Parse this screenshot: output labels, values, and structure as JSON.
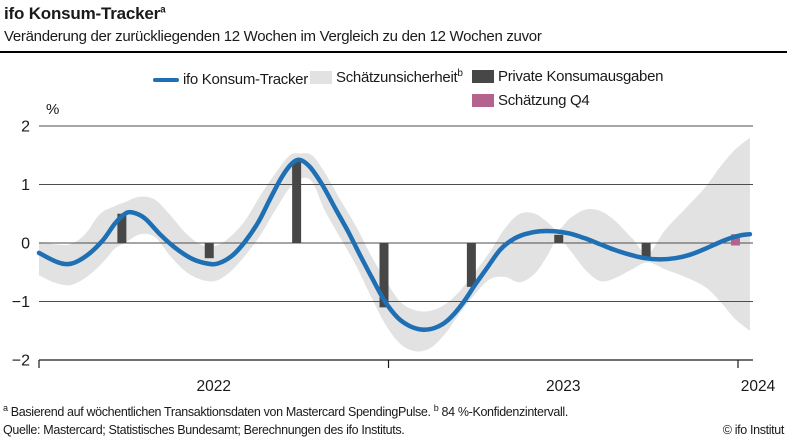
{
  "header": {
    "title": "ifo Konsum-Tracker",
    "title_superscript": "a",
    "subtitle": "Veränderung der zurückliegenden 12 Wochen im Vergleich zu den 12 Wochen zuvor"
  },
  "legend": {
    "items": [
      {
        "label": "ifo Konsum-Tracker",
        "type": "line",
        "color": "#1e6fb4"
      },
      {
        "label": "Schätzunsicherheit",
        "superscript": "b",
        "type": "band",
        "color": "#e2e2e2"
      },
      {
        "label": "Private Konsumausgaben",
        "type": "bar",
        "color": "#474747"
      },
      {
        "label": "Schätzung Q4",
        "type": "bar",
        "color": "#b4628e"
      }
    ]
  },
  "footnotes": {
    "note_a_sup": "a",
    "note_a": "Basierend auf wöchentlichen Transaktionsdaten von Mastercard SpendingPulse.",
    "note_b_sup": "b",
    "note_b": "84 %-Konfidenzintervall.",
    "source": "Quelle: Mastercard; Statistisches Bundesamt; Berechnungen des ifo Instituts.",
    "copyright": "© ifo Institut"
  },
  "chart_data": {
    "type": "line",
    "title": "ifo Konsum-Tracker",
    "unit_label": "%",
    "ylim": [
      -2,
      2
    ],
    "yticks": [
      2,
      1,
      0,
      -1,
      -2
    ],
    "ytick_labels": [
      "2",
      "1",
      "0",
      "−1",
      "−2"
    ],
    "xlim": [
      2022.0,
      2024.04
    ],
    "x_year_ticks": [
      2022,
      2023,
      2024
    ],
    "x_tick_labels": [
      "2022",
      "2023",
      "2024"
    ],
    "grid": "horizontal",
    "legend_position": "top",
    "line_series": {
      "name": "ifo Konsum-Tracker",
      "color": "#1e6fb4",
      "points": [
        [
          2022.0,
          -0.17
        ],
        [
          2022.054,
          -0.33
        ],
        [
          2022.094,
          -0.35
        ],
        [
          2022.14,
          -0.2
        ],
        [
          2022.183,
          0.05
        ],
        [
          2022.217,
          0.33
        ],
        [
          2022.246,
          0.5
        ],
        [
          2022.269,
          0.52
        ],
        [
          2022.303,
          0.42
        ],
        [
          2022.346,
          0.15
        ],
        [
          2022.389,
          -0.08
        ],
        [
          2022.438,
          -0.27
        ],
        [
          2022.481,
          -0.35
        ],
        [
          2022.512,
          -0.35
        ],
        [
          2022.552,
          -0.22
        ],
        [
          2022.589,
          0.02
        ],
        [
          2022.627,
          0.35
        ],
        [
          2022.661,
          0.75
        ],
        [
          2022.695,
          1.13
        ],
        [
          2022.724,
          1.36
        ],
        [
          2022.747,
          1.42
        ],
        [
          2022.775,
          1.3
        ],
        [
          2022.81,
          1.0
        ],
        [
          2022.847,
          0.6
        ],
        [
          2022.884,
          0.2
        ],
        [
          2022.918,
          -0.2
        ],
        [
          2022.953,
          -0.6
        ],
        [
          2022.99,
          -1.0
        ],
        [
          2023.027,
          -1.28
        ],
        [
          2023.061,
          -1.42
        ],
        [
          2023.096,
          -1.48
        ],
        [
          2023.133,
          -1.45
        ],
        [
          2023.17,
          -1.32
        ],
        [
          2023.21,
          -1.05
        ],
        [
          2023.247,
          -0.72
        ],
        [
          2023.285,
          -0.4
        ],
        [
          2023.319,
          -0.12
        ],
        [
          2023.353,
          0.05
        ],
        [
          2023.39,
          0.15
        ],
        [
          2023.433,
          0.2
        ],
        [
          2023.476,
          0.2
        ],
        [
          2023.519,
          0.16
        ],
        [
          2023.562,
          0.08
        ],
        [
          2023.605,
          -0.02
        ],
        [
          2023.648,
          -0.12
        ],
        [
          2023.691,
          -0.2
        ],
        [
          2023.734,
          -0.26
        ],
        [
          2023.777,
          -0.28
        ],
        [
          2023.82,
          -0.26
        ],
        [
          2023.863,
          -0.2
        ],
        [
          2023.906,
          -0.1
        ],
        [
          2023.943,
          0.0
        ],
        [
          2023.977,
          0.08
        ],
        [
          2024.006,
          0.13
        ],
        [
          2024.034,
          0.15
        ]
      ]
    },
    "band_series": {
      "name": "Schätzunsicherheit (84 %-Konfidenzintervall)",
      "color": "#e2e2e2",
      "points": [
        [
          2022.0,
          0.02,
          -0.55
        ],
        [
          2022.046,
          -0.02,
          -0.68
        ],
        [
          2022.089,
          -0.02,
          -0.72
        ],
        [
          2022.132,
          0.15,
          -0.6
        ],
        [
          2022.175,
          0.5,
          -0.38
        ],
        [
          2022.217,
          0.63,
          -0.1
        ],
        [
          2022.246,
          0.7,
          0.0
        ],
        [
          2022.289,
          0.79,
          0.15
        ],
        [
          2022.332,
          0.74,
          0.1
        ],
        [
          2022.375,
          0.48,
          -0.22
        ],
        [
          2022.418,
          0.18,
          -0.48
        ],
        [
          2022.461,
          -0.02,
          -0.62
        ],
        [
          2022.504,
          -0.05,
          -0.65
        ],
        [
          2022.546,
          0.1,
          -0.5
        ],
        [
          2022.589,
          0.38,
          -0.22
        ],
        [
          2022.632,
          0.8,
          0.12
        ],
        [
          2022.675,
          1.18,
          0.55
        ],
        [
          2022.718,
          1.5,
          0.95
        ],
        [
          2022.747,
          1.53,
          1.1
        ],
        [
          2022.781,
          1.5,
          1.05
        ],
        [
          2022.818,
          1.2,
          0.55
        ],
        [
          2022.861,
          0.75,
          0.1
        ],
        [
          2022.904,
          0.32,
          -0.35
        ],
        [
          2022.947,
          -0.18,
          -0.88
        ],
        [
          2022.99,
          -0.62,
          -1.38
        ],
        [
          2023.033,
          -1.0,
          -1.72
        ],
        [
          2023.076,
          -1.15,
          -1.85
        ],
        [
          2023.119,
          -1.16,
          -1.8
        ],
        [
          2023.162,
          -1.05,
          -1.55
        ],
        [
          2023.204,
          -0.82,
          -1.2
        ],
        [
          2023.247,
          -0.5,
          -0.88
        ],
        [
          2023.29,
          -0.15,
          -0.62
        ],
        [
          2023.333,
          0.25,
          -0.58
        ],
        [
          2023.376,
          0.5,
          -0.67
        ],
        [
          2023.419,
          0.5,
          -0.52
        ],
        [
          2023.456,
          0.35,
          -0.2
        ],
        [
          2023.485,
          0.22,
          0.08
        ],
        [
          2023.519,
          0.42,
          -0.12
        ],
        [
          2023.562,
          0.57,
          -0.45
        ],
        [
          2023.605,
          0.55,
          -0.65
        ],
        [
          2023.648,
          0.38,
          -0.6
        ],
        [
          2023.697,
          0.08,
          -0.45
        ],
        [
          2023.742,
          -0.18,
          -0.33
        ],
        [
          2023.791,
          0.22,
          -0.45
        ],
        [
          2023.848,
          0.58,
          -0.58
        ],
        [
          2023.906,
          0.95,
          -0.75
        ],
        [
          2023.949,
          1.3,
          -1.0
        ],
        [
          2023.992,
          1.6,
          -1.3
        ],
        [
          2024.034,
          1.8,
          -1.5
        ]
      ]
    },
    "bar_series": {
      "name": "Private Konsumausgaben",
      "color": "#474747",
      "points": [
        [
          2022.25,
          0.5
        ],
        [
          2022.5,
          -0.26
        ],
        [
          2022.75,
          1.4
        ],
        [
          2023.0,
          -1.1
        ],
        [
          2023.25,
          -0.75
        ],
        [
          2023.5,
          0.14
        ],
        [
          2023.75,
          -0.25
        ]
      ]
    },
    "estimate_bar": {
      "name": "Schätzung Q4",
      "color": "#b4628e",
      "point": [
        2024.0,
        0.15
      ]
    }
  }
}
